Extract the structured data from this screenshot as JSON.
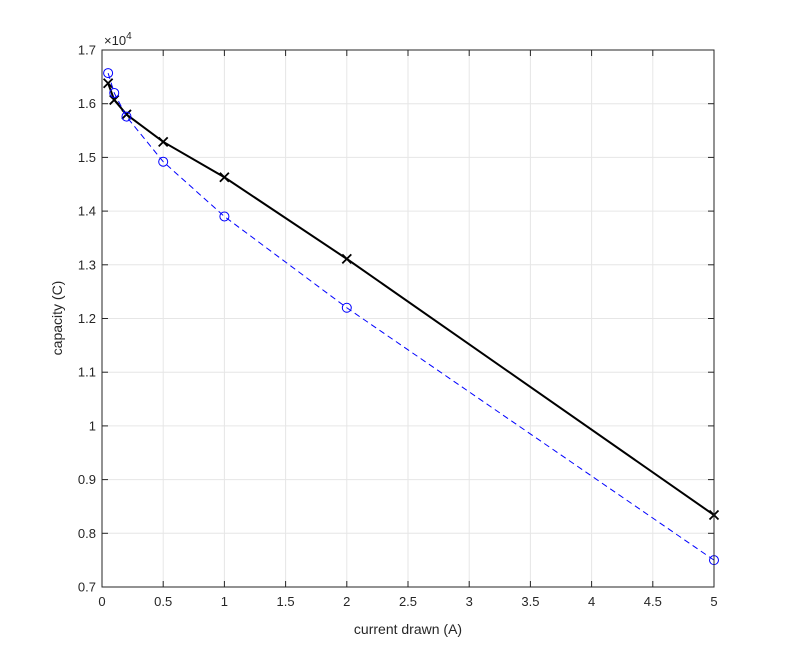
{
  "chart_data": {
    "type": "line",
    "xlabel": "current drawn (A)",
    "ylabel": "capacity (C)",
    "xlim": [
      0,
      5
    ],
    "ylim": [
      7000,
      17000
    ],
    "y_exponent_label": {
      "base": "×10",
      "power": "4"
    },
    "x_ticks": [
      0,
      0.5,
      1,
      1.5,
      2,
      2.5,
      3,
      3.5,
      4,
      4.5,
      5
    ],
    "x_tick_labels": [
      "0",
      "0.5",
      "1",
      "1.5",
      "2",
      "2.5",
      "3",
      "3.5",
      "4",
      "4.5",
      "5"
    ],
    "y_ticks": [
      7000,
      8000,
      9000,
      10000,
      11000,
      12000,
      13000,
      14000,
      15000,
      16000,
      17000
    ],
    "y_tick_labels": [
      "0.7",
      "0.8",
      "0.9",
      "1",
      "1.1",
      "1.2",
      "1.3",
      "1.4",
      "1.5",
      "1.6",
      "1.7"
    ],
    "grid": true,
    "series": [
      {
        "color": "#000000",
        "line_style": "solid",
        "marker": "x",
        "x": [
          0.05,
          0.1,
          0.2,
          0.5,
          1,
          2,
          5
        ],
        "y": [
          16380,
          16070,
          15800,
          15290,
          14630,
          13110,
          8340
        ]
      },
      {
        "color": "#0000ff",
        "line_style": "dashed",
        "marker": "o",
        "x": [
          0.05,
          0.1,
          0.2,
          0.5,
          1,
          2,
          5
        ],
        "y": [
          16570,
          16200,
          15760,
          14920,
          13900,
          12200,
          7500
        ]
      }
    ]
  }
}
